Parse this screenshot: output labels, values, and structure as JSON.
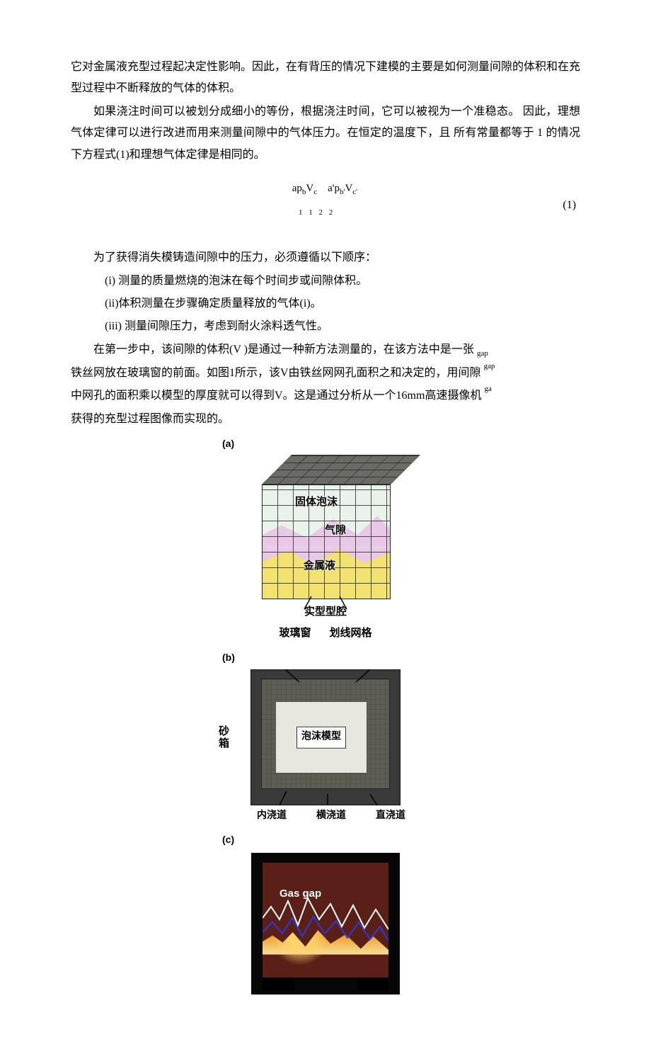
{
  "paragraphs": {
    "p1": "它对金属液充型过程起决定性影响。因此，在有背压的情况下建模的主要是如何测量间隙的体积和在充型过程中不断释放的气体的体积。",
    "p2": "如果浇注时间可以被划分成细小的等份，根据浇注时间，它可以被视为一个准稳态。 因此，理想气体定律可以进行改进而用来测量间隙中的气体压力。在恒定的温度下，且 所有常量都等于 1 的情况下方程式(1)和理想气体定律是相同的。",
    "p3": "为了获得消失模铸造间隙中的压力，必须遵循以下顺序：",
    "li1": "(i) 测量的质量燃烧的泡沫在每个时间步或间隙体积。",
    "li2": "(ii)体积测量在步骤确定质量释放的气体(i)。",
    "li3": "(iii) 测量间隙压力，考虑到耐火涂料透气性。",
    "p4a": "在第一步中，该间隙的体积(V )是通过一种新方法测量的，在该方法中是一张",
    "p4a_sub": "gap",
    "p4b": "铁丝网放在玻璃窗的前面。如图1所示，该V由铁丝网网孔面积之和决定的，用间隙",
    "p4b_sub": "gap",
    "p4c": "中网孔的面积乘以模型的厚度就可以得到V。这是通过分析从一个16mm高速摄像机",
    "p4c_sub": "ga",
    "p4d": "获得的充型过程图像而实现的。"
  },
  "equation": {
    "top": "ap",
    "seq": "V",
    "mid_full": "apₐVₑ    a'pₐ'Vₑ'",
    "sub_line": "1 1 2 2",
    "number": "(1)"
  },
  "figure": {
    "tags": {
      "a": "(a)",
      "b": "(b)",
      "c": "(c)"
    },
    "a": {
      "foam": "固体泡沫",
      "gap": "气隙",
      "metal": "金属液",
      "cavity": "实型型腔",
      "glass": "玻璃窗",
      "grid": "划线网格",
      "colors": {
        "foam": "#e9f3e9",
        "gap": "#e9c7e7",
        "metal": "#f2e26f",
        "gridline": "#6a6a6a"
      }
    },
    "b": {
      "sandbox": "砂箱",
      "pattern": "泡沫模型",
      "ingate": "内浇道",
      "runner": "横浇道",
      "sprue": "直浇道"
    },
    "c": {
      "label": "Gas gap"
    }
  }
}
